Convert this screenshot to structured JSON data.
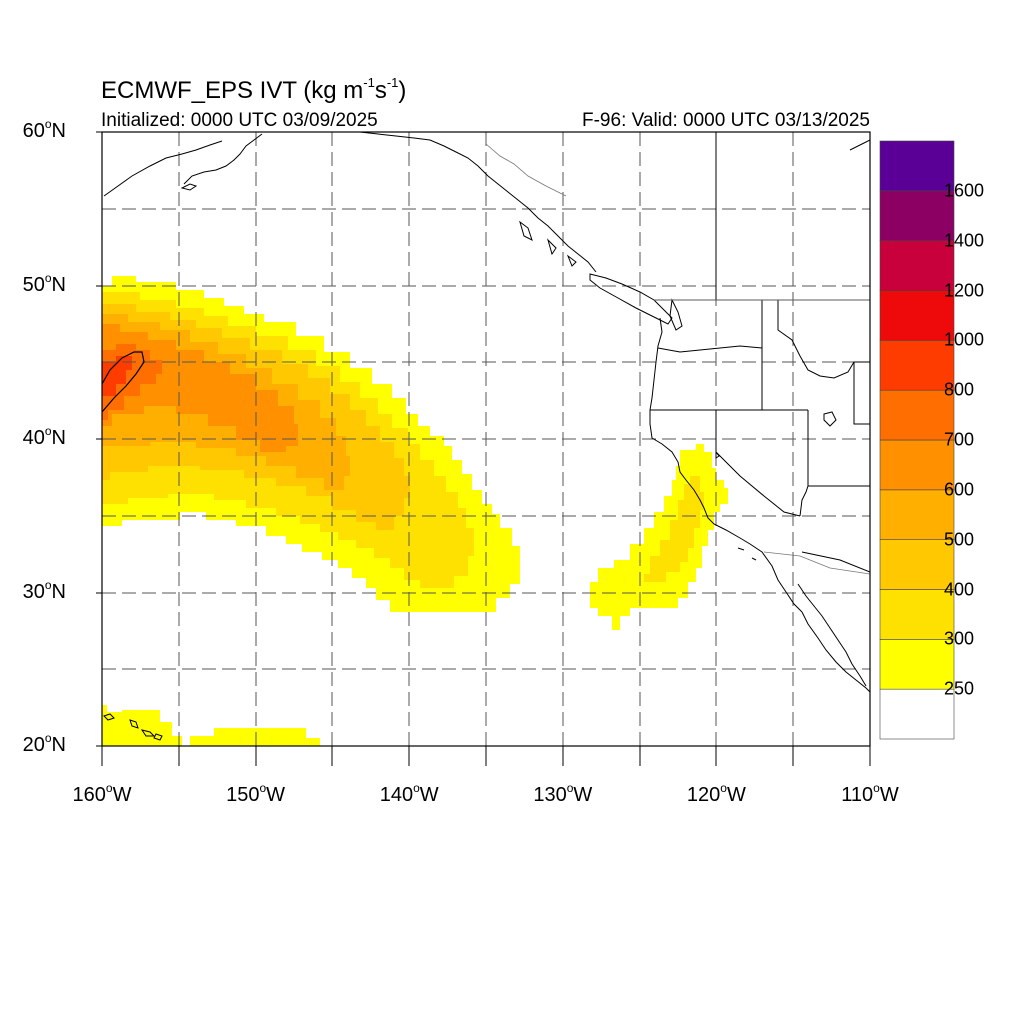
{
  "title": {
    "model": "ECMWF_EPS IVT",
    "units_open": "(kg m",
    "exp1": "-1",
    "units_mid": "s",
    "exp2": "-1",
    "units_close": ")"
  },
  "subtitle_left": "Initialized: 0000 UTC 03/09/2025",
  "subtitle_right": "F-96: Valid: 0000 UTC 03/13/2025",
  "map": {
    "lon_range": [
      -160,
      -110
    ],
    "lat_range": [
      20,
      60
    ],
    "grid_lines": true,
    "lat_ticks": [
      {
        "num": "60",
        "suf": "N",
        "lat": 60
      },
      {
        "num": "50",
        "suf": "N",
        "lat": 50
      },
      {
        "num": "40",
        "suf": "N",
        "lat": 40
      },
      {
        "num": "30",
        "suf": "N",
        "lat": 30
      },
      {
        "num": "20",
        "suf": "N",
        "lat": 20
      }
    ],
    "lon_ticks": [
      {
        "num": "160",
        "suf": "W",
        "lon": -160
      },
      {
        "num": "150",
        "suf": "W",
        "lon": -150
      },
      {
        "num": "140",
        "suf": "W",
        "lon": -140
      },
      {
        "num": "130",
        "suf": "W",
        "lon": -130
      },
      {
        "num": "120",
        "suf": "W",
        "lon": -120
      },
      {
        "num": "110",
        "suf": "W",
        "lon": -110
      }
    ]
  },
  "colorbar": {
    "levels": [
      250,
      300,
      400,
      500,
      600,
      700,
      800,
      1000,
      1200,
      1400,
      1600
    ],
    "labels": [
      "250",
      "300",
      "400",
      "500",
      "600",
      "700",
      "800",
      "1000",
      "1200",
      "1400",
      "1600"
    ],
    "colors": [
      "#ffffff",
      "#ffff00",
      "#ffe100",
      "#ffc800",
      "#ffaf00",
      "#ff9100",
      "#ff6e00",
      "#ff3c00",
      "#ee0a0a",
      "#c8003c",
      "#8c0064",
      "#5a0096"
    ]
  }
}
